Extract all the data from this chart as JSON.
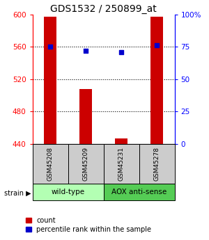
{
  "title": "GDS1532 / 250899_at",
  "samples": [
    "GSM45208",
    "GSM45209",
    "GSM45231",
    "GSM45278"
  ],
  "counts": [
    597,
    508,
    447,
    597
  ],
  "percentiles": [
    75,
    72,
    71,
    76
  ],
  "ylim_left": [
    440,
    600
  ],
  "ylim_right": [
    0,
    100
  ],
  "yticks_left": [
    440,
    480,
    520,
    560,
    600
  ],
  "yticks_right": [
    0,
    25,
    50,
    75,
    100
  ],
  "ytick_labels_right": [
    "0",
    "25",
    "50",
    "75",
    "100%"
  ],
  "bar_color": "#cc0000",
  "dot_color": "#0000cc",
  "bar_width": 0.35,
  "groups": [
    {
      "label": "wild-type",
      "samples": [
        0,
        1
      ],
      "color": "#b3ffb3"
    },
    {
      "label": "AOX anti-sense",
      "samples": [
        2,
        3
      ],
      "color": "#55cc55"
    }
  ],
  "strain_label": "strain",
  "legend_items": [
    {
      "color": "#cc0000",
      "label": "count"
    },
    {
      "color": "#0000cc",
      "label": "percentile rank within the sample"
    }
  ],
  "bg_color": "#ffffff",
  "sample_box_color": "#cccccc",
  "title_fontsize": 10,
  "tick_fontsize": 7.5,
  "legend_fontsize": 7
}
